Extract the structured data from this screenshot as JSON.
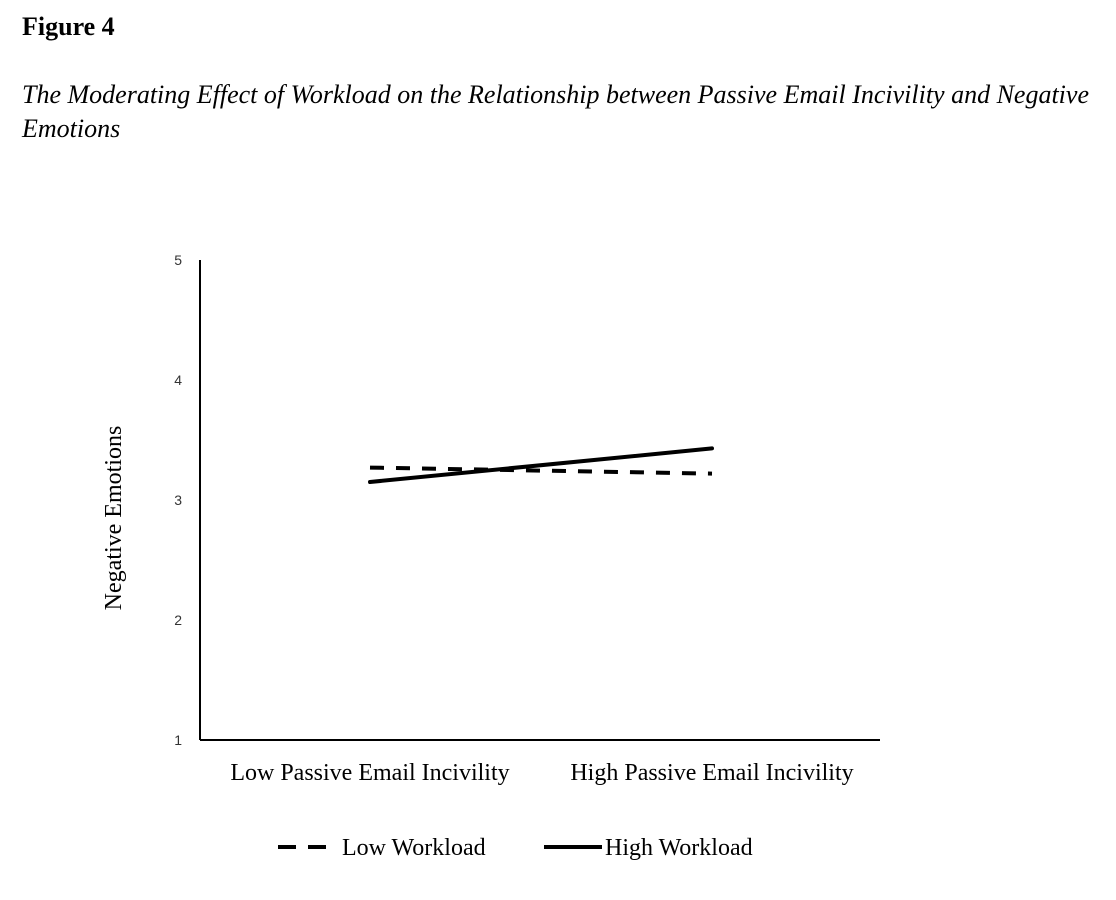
{
  "figure": {
    "label": "Figure 4",
    "title": "The Moderating Effect of Workload on the Relationship between Passive Email Incivility and Negative Emotions"
  },
  "chart_data": {
    "type": "line",
    "title": "",
    "xlabel": "",
    "ylabel": "Negative Emotions",
    "ylim": [
      1,
      5
    ],
    "yticks": [
      1,
      2,
      3,
      4,
      5
    ],
    "categories": [
      "Low Passive Email Incivility",
      "High Passive Email Incivility"
    ],
    "grid": false,
    "legend_position": "bottom",
    "series": [
      {
        "name": "Low Workload",
        "values": [
          3.27,
          3.22
        ],
        "style": "dashed",
        "color": "#000000"
      },
      {
        "name": "High Workload",
        "values": [
          3.15,
          3.43
        ],
        "style": "solid",
        "color": "#000000"
      }
    ]
  }
}
